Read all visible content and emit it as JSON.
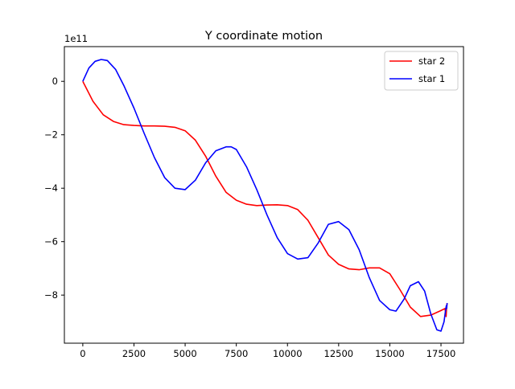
{
  "chart_data": {
    "type": "line",
    "title": "Y coordinate motion",
    "xlabel": "",
    "ylabel": "",
    "y_offset_label": "1e11",
    "xlim": [
      -900,
      18600
    ],
    "ylim": [
      -9.8,
      1.3
    ],
    "x_ticks": [
      0,
      2500,
      5000,
      7500,
      10000,
      12500,
      15000,
      17500
    ],
    "x_tick_labels": [
      "0",
      "2500",
      "5000",
      "7500",
      "10000",
      "12500",
      "15000",
      "17500"
    ],
    "y_ticks": [
      0,
      -2,
      -4,
      -6,
      -8
    ],
    "y_tick_labels": [
      "0",
      "−2",
      "−4",
      "−6",
      "−8"
    ],
    "grid": false,
    "legend_position": "top-right",
    "series": [
      {
        "name": "star 2",
        "color": "#ff0000",
        "x": [
          0,
          500,
          1000,
          1500,
          2000,
          2500,
          3000,
          3500,
          4000,
          4500,
          5000,
          5500,
          6000,
          6500,
          7000,
          7500,
          8000,
          8500,
          9000,
          9500,
          10000,
          10500,
          11000,
          11500,
          12000,
          12500,
          13000,
          13500,
          14000,
          14500,
          15000,
          15500,
          16000,
          16500,
          17000,
          17500,
          17700,
          17750,
          17780,
          17800
        ],
        "y": [
          0,
          -0.75,
          -1.25,
          -1.5,
          -1.62,
          -1.65,
          -1.67,
          -1.67,
          -1.68,
          -1.72,
          -1.85,
          -2.2,
          -2.8,
          -3.55,
          -4.15,
          -4.45,
          -4.6,
          -4.65,
          -4.63,
          -4.62,
          -4.65,
          -4.8,
          -5.2,
          -5.85,
          -6.5,
          -6.85,
          -7.02,
          -7.05,
          -6.98,
          -6.98,
          -7.2,
          -7.8,
          -8.45,
          -8.8,
          -8.75,
          -8.58,
          -8.5,
          -8.8,
          -8.4,
          -8.3
        ]
      },
      {
        "name": "star 1",
        "color": "#0000ff",
        "x": [
          0,
          300,
          600,
          900,
          1200,
          1600,
          2000,
          2500,
          3000,
          3500,
          4000,
          4500,
          5000,
          5500,
          6000,
          6500,
          7000,
          7250,
          7500,
          8000,
          8500,
          9000,
          9500,
          10000,
          10500,
          11000,
          11500,
          12000,
          12500,
          13000,
          13500,
          14000,
          14500,
          15000,
          15300,
          15700,
          16000,
          16400,
          16700,
          17000,
          17300,
          17500,
          17650,
          17720,
          17760,
          17780,
          17800
        ],
        "y": [
          0,
          0.5,
          0.75,
          0.82,
          0.78,
          0.45,
          -0.15,
          -1.0,
          -1.95,
          -2.85,
          -3.6,
          -4.0,
          -4.05,
          -3.7,
          -3.05,
          -2.6,
          -2.45,
          -2.45,
          -2.55,
          -3.2,
          -4.05,
          -5.0,
          -5.85,
          -6.45,
          -6.65,
          -6.6,
          -6.05,
          -5.35,
          -5.25,
          -5.55,
          -6.3,
          -7.35,
          -8.2,
          -8.55,
          -8.6,
          -8.15,
          -7.65,
          -7.5,
          -7.85,
          -8.7,
          -9.3,
          -9.35,
          -9.0,
          -8.6,
          -8.4,
          -8.5,
          -8.3
        ]
      }
    ]
  }
}
